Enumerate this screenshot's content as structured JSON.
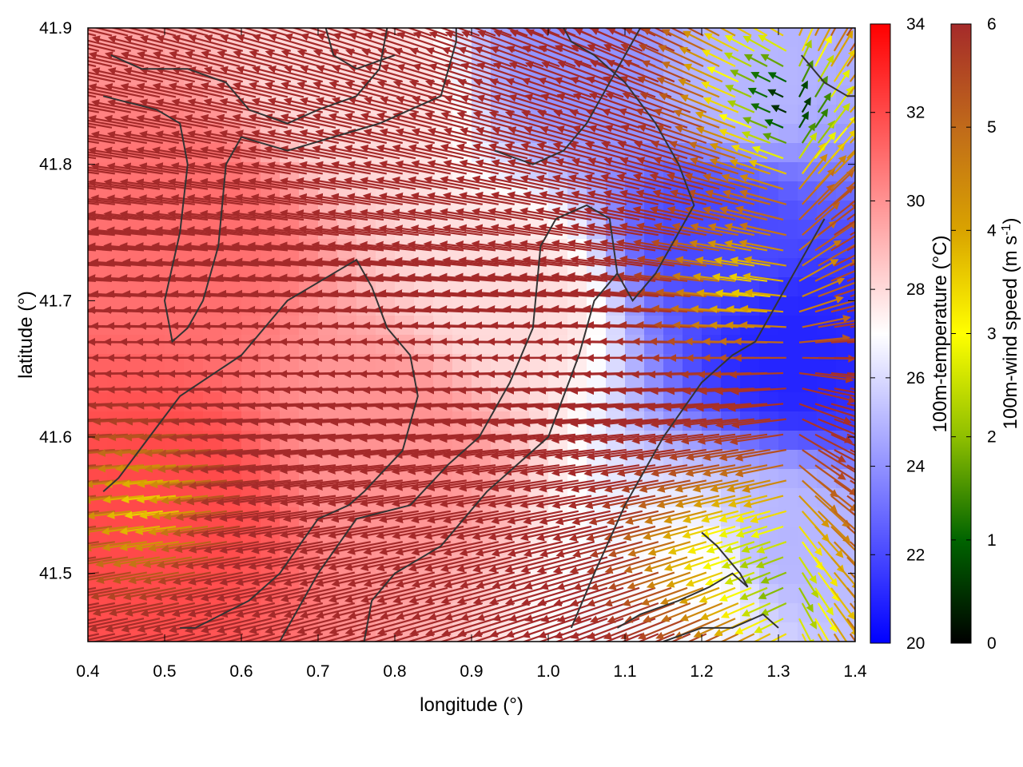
{
  "chart_data": {
    "type": "heatmap",
    "xlabel": "longitude (°)",
    "ylabel": "latitude (°)",
    "xlim": [
      0.4,
      1.4
    ],
    "ylim": [
      41.45,
      41.9
    ],
    "x_ticks": [
      "0.4",
      "0.5",
      "0.6",
      "0.7",
      "0.8",
      "0.9",
      "1.0",
      "1.1",
      "1.2",
      "1.3",
      "1.4"
    ],
    "y_ticks": [
      "41.5",
      "41.6",
      "41.7",
      "41.8",
      "41.9"
    ],
    "grid": false,
    "temperature_colorbar": {
      "label": "100m-temperature (°C)",
      "range": [
        20,
        34
      ],
      "ticks": [
        "20",
        "22",
        "24",
        "26",
        "28",
        "30",
        "32",
        "34"
      ],
      "colors": [
        "#0000ff",
        "#ffffff",
        "#ff0000"
      ]
    },
    "wind_colorbar": {
      "label": "100m-wind speed (m s",
      "label_sup": "-1",
      "label_end": ")",
      "range": [
        0,
        6
      ],
      "ticks": [
        "0",
        "1",
        "2",
        "3",
        "4",
        "5",
        "6"
      ],
      "colors": [
        "#000000",
        "#006400",
        "#8fbf00",
        "#ffff00",
        "#d9a300",
        "#c06a1a",
        "#a52a2a"
      ]
    },
    "temperature_regions": [
      {
        "lon": 0.55,
        "lat": 41.75,
        "value": 31
      },
      {
        "lon": 0.5,
        "lat": 41.55,
        "value": 32
      },
      {
        "lon": 0.8,
        "lat": 41.6,
        "value": 30
      },
      {
        "lon": 0.75,
        "lat": 41.85,
        "value": 28
      },
      {
        "lon": 0.95,
        "lat": 41.7,
        "value": 28
      },
      {
        "lon": 1.05,
        "lat": 41.88,
        "value": 24
      },
      {
        "lon": 1.22,
        "lat": 41.75,
        "value": 22
      },
      {
        "lon": 1.32,
        "lat": 41.66,
        "value": 21
      },
      {
        "lon": 1.3,
        "lat": 41.52,
        "value": 25
      },
      {
        "lon": 1.2,
        "lat": 41.5,
        "value": 27
      },
      {
        "lon": 1.25,
        "lat": 41.86,
        "value": 25
      }
    ],
    "wind_regions": [
      {
        "lon": 0.5,
        "lat": 41.55,
        "value": 3.5
      },
      {
        "lon": 1.28,
        "lat": 41.87,
        "value": 3
      },
      {
        "lon": 1.33,
        "lat": 41.83,
        "value": 1.5
      },
      {
        "lon": 1.28,
        "lat": 41.71,
        "value": 3.5
      },
      {
        "lon": 1.22,
        "lat": 41.52,
        "value": 4
      },
      {
        "lon": 1.32,
        "lat": 41.48,
        "value": 2.5
      },
      {
        "lon": 1.3,
        "lat": 41.54,
        "value": 4
      }
    ],
    "wind_convergence": {
      "lon": 1.34,
      "lat": 41.66
    },
    "contours": [
      [
        [
          0.42,
          41.56
        ],
        [
          0.44,
          41.57
        ],
        [
          0.48,
          41.6
        ],
        [
          0.52,
          41.63
        ],
        [
          0.6,
          41.66
        ],
        [
          0.66,
          41.7
        ],
        [
          0.72,
          41.72
        ],
        [
          0.75,
          41.73
        ],
        [
          0.77,
          41.71
        ],
        [
          0.79,
          41.68
        ],
        [
          0.82,
          41.66
        ],
        [
          0.83,
          41.63
        ],
        [
          0.81,
          41.59
        ],
        [
          0.76,
          41.56
        ],
        [
          0.74,
          41.55
        ],
        [
          0.7,
          41.54
        ],
        [
          0.65,
          41.5
        ],
        [
          0.61,
          41.48
        ],
        [
          0.54,
          41.46
        ],
        [
          0.52,
          41.46
        ]
      ],
      [
        [
          0.42,
          41.85
        ],
        [
          0.49,
          41.84
        ],
        [
          0.52,
          41.83
        ],
        [
          0.53,
          41.8
        ],
        [
          0.52,
          41.75
        ],
        [
          0.5,
          41.7
        ],
        [
          0.51,
          41.67
        ],
        [
          0.53,
          41.68
        ],
        [
          0.55,
          41.7
        ],
        [
          0.57,
          41.74
        ],
        [
          0.58,
          41.8
        ],
        [
          0.6,
          41.82
        ],
        [
          0.66,
          41.81
        ],
        [
          0.72,
          41.82
        ],
        [
          0.78,
          41.83
        ],
        [
          0.86,
          41.85
        ],
        [
          0.88,
          41.89
        ],
        [
          0.88,
          41.9
        ]
      ],
      [
        [
          0.43,
          41.88
        ],
        [
          0.47,
          41.87
        ],
        [
          0.53,
          41.87
        ],
        [
          0.58,
          41.86
        ],
        [
          0.61,
          41.84
        ],
        [
          0.66,
          41.83
        ],
        [
          0.7,
          41.84
        ],
        [
          0.75,
          41.85
        ],
        [
          0.78,
          41.87
        ],
        [
          0.79,
          41.9
        ]
      ],
      [
        [
          0.71,
          41.9
        ],
        [
          0.72,
          41.88
        ],
        [
          0.75,
          41.87
        ],
        [
          0.8,
          41.88
        ]
      ],
      [
        [
          0.65,
          41.45
        ],
        [
          0.7,
          41.5
        ],
        [
          0.75,
          41.54
        ],
        [
          0.82,
          41.55
        ],
        [
          0.87,
          41.58
        ],
        [
          0.91,
          41.6
        ],
        [
          0.95,
          41.64
        ],
        [
          0.98,
          41.68
        ],
        [
          0.99,
          41.74
        ],
        [
          1.01,
          41.76
        ],
        [
          1.05,
          41.77
        ],
        [
          1.08,
          41.76
        ],
        [
          1.09,
          41.72
        ],
        [
          1.11,
          41.7
        ],
        [
          1.14,
          41.72
        ],
        [
          1.17,
          41.75
        ],
        [
          1.19,
          41.77
        ],
        [
          1.17,
          41.8
        ],
        [
          1.14,
          41.83
        ],
        [
          1.1,
          41.86
        ],
        [
          1.06,
          41.88
        ],
        [
          1.03,
          41.89
        ],
        [
          1.02,
          41.9
        ]
      ],
      [
        [
          0.76,
          41.45
        ],
        [
          0.77,
          41.48
        ],
        [
          0.8,
          41.5
        ],
        [
          0.86,
          41.52
        ],
        [
          0.92,
          41.56
        ],
        [
          0.96,
          41.58
        ],
        [
          1.0,
          41.6
        ],
        [
          1.02,
          41.63
        ],
        [
          1.04,
          41.66
        ],
        [
          1.06,
          41.7
        ],
        [
          1.09,
          41.72
        ]
      ],
      [
        [
          0.93,
          41.81
        ],
        [
          0.98,
          41.8
        ],
        [
          1.02,
          41.81
        ],
        [
          1.05,
          41.83
        ],
        [
          1.08,
          41.86
        ],
        [
          1.1,
          41.88
        ],
        [
          1.12,
          41.9
        ]
      ],
      [
        [
          1.03,
          41.46
        ],
        [
          1.06,
          41.5
        ],
        [
          1.1,
          41.55
        ],
        [
          1.15,
          41.6
        ],
        [
          1.2,
          41.64
        ],
        [
          1.24,
          41.66
        ],
        [
          1.27,
          41.67
        ],
        [
          1.3,
          41.7
        ],
        [
          1.33,
          41.73
        ],
        [
          1.36,
          41.76
        ]
      ],
      [
        [
          1.09,
          41.46
        ],
        [
          1.12,
          41.47
        ],
        [
          1.17,
          41.48
        ],
        [
          1.21,
          41.49
        ],
        [
          1.24,
          41.5
        ],
        [
          1.26,
          41.49
        ],
        [
          1.25,
          41.5
        ],
        [
          1.22,
          41.52
        ],
        [
          1.2,
          41.53
        ]
      ],
      [
        [
          1.33,
          41.88
        ],
        [
          1.36,
          41.86
        ],
        [
          1.39,
          41.85
        ],
        [
          1.4,
          41.85
        ]
      ],
      [
        [
          1.15,
          41.45
        ],
        [
          1.2,
          41.46
        ],
        [
          1.24,
          41.46
        ],
        [
          1.28,
          41.47
        ],
        [
          1.3,
          41.46
        ]
      ]
    ]
  }
}
